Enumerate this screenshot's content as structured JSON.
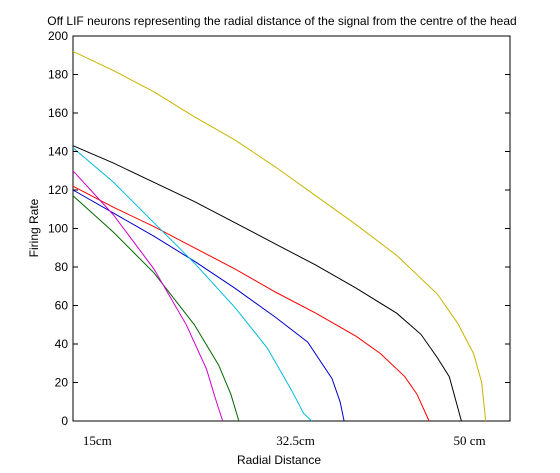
{
  "chart_data": {
    "type": "line",
    "title": "Off LIF neurons representing the radial distance of the signal from the centre of the head",
    "xlabel": "Radial Distance",
    "ylabel": "Firing Rate",
    "xlim": [
      0,
      10.8
    ],
    "ylim": [
      0,
      200
    ],
    "yticks": [
      0,
      20,
      40,
      60,
      80,
      100,
      120,
      140,
      160,
      180,
      200
    ],
    "xtick_labels": [
      {
        "x": 0.6,
        "label": "15cm"
      },
      {
        "x": 5.5,
        "label": "32.5cm"
      },
      {
        "x": 9.8,
        "label": "50 cm"
      }
    ],
    "grid": false,
    "legend": "none",
    "series": [
      {
        "color": "#c8b400",
        "x": [
          0,
          1,
          2,
          3,
          4,
          5,
          6,
          7,
          8,
          9,
          9.5,
          9.9,
          10.1,
          10.2
        ],
        "y": [
          192,
          182,
          171,
          158,
          146,
          132,
          117,
          102,
          86,
          66,
          51,
          35,
          20,
          0
        ]
      },
      {
        "color": "#000000",
        "x": [
          0,
          1,
          2,
          3,
          4,
          5,
          6,
          7,
          8,
          8.6,
          9.0,
          9.3,
          9.6
        ],
        "y": [
          143,
          134,
          124,
          114,
          103,
          92,
          81,
          69,
          56,
          45,
          33,
          23,
          0
        ]
      },
      {
        "color": "#ff0000",
        "x": [
          0,
          1,
          2,
          3,
          4,
          5,
          6,
          7,
          7.6,
          8.2,
          8.5,
          8.8
        ],
        "y": [
          122,
          111,
          101,
          90,
          79,
          67,
          56,
          44,
          35,
          23,
          14,
          0
        ]
      },
      {
        "color": "#0000cc",
        "x": [
          0,
          1,
          2,
          3,
          4,
          5,
          5.8,
          6.4,
          6.6,
          6.7
        ],
        "y": [
          120,
          108,
          96,
          83,
          69,
          54,
          41,
          22,
          10,
          0
        ]
      },
      {
        "color": "#00bbdd",
        "x": [
          0,
          1,
          2,
          3,
          4,
          4.8,
          5.4,
          5.7,
          5.9
        ],
        "y": [
          142,
          124,
          103,
          82,
          59,
          38,
          16,
          4,
          0
        ]
      },
      {
        "color": "#006600",
        "x": [
          0,
          1,
          2,
          3,
          3.6,
          3.9,
          4.1
        ],
        "y": [
          117,
          98,
          77,
          50,
          29,
          14,
          0
        ]
      },
      {
        "color": "#cc00cc",
        "x": [
          0,
          1,
          2,
          2.8,
          3.3,
          3.5,
          3.7
        ],
        "y": [
          130,
          107,
          79,
          50,
          27,
          13,
          0
        ]
      }
    ]
  }
}
